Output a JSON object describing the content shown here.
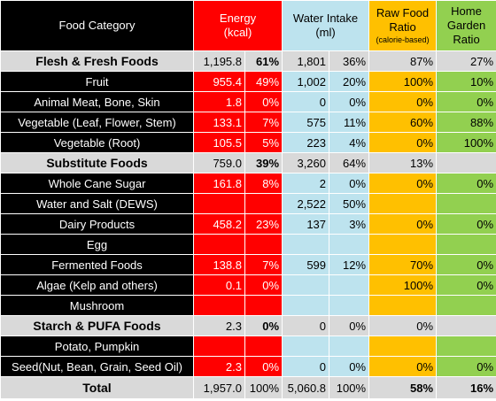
{
  "headers": {
    "category": "Food Category",
    "energy_line1": "Energy",
    "energy_line2": "(kcal)",
    "water_line1": "Water Intake",
    "water_line2": "(ml)",
    "raw_line1": "Raw Food",
    "raw_line2": "Ratio",
    "raw_line3": "(calorie-based)",
    "home_line1": "Home",
    "home_line2": "Garden",
    "home_line3": "Ratio"
  },
  "colors": {
    "energy": "#ff0000",
    "water": "#bde3ee",
    "raw": "#ffc000",
    "home": "#92d050",
    "section": "#d9d9d9",
    "item_label": "#000000"
  },
  "rows": [
    {
      "type": "section",
      "name": "Flesh & Fresh Foods",
      "energy": "1,195.8",
      "energy_pct": "61%",
      "water": "1,801",
      "water_pct": "36%",
      "raw": "87%",
      "home": "27%"
    },
    {
      "type": "item",
      "name": "Fruit",
      "energy": "955.4",
      "energy_pct": "49%",
      "water": "1,002",
      "water_pct": "20%",
      "raw": "100%",
      "home": "10%"
    },
    {
      "type": "item",
      "name": "Animal Meat, Bone, Skin",
      "energy": "1.8",
      "energy_pct": "0%",
      "water": "0",
      "water_pct": "0%",
      "raw": "0%",
      "home": "0%"
    },
    {
      "type": "item",
      "name": "Vegetable (Leaf, Flower, Stem)",
      "energy": "133.1",
      "energy_pct": "7%",
      "water": "575",
      "water_pct": "11%",
      "raw": "60%",
      "home": "88%"
    },
    {
      "type": "item",
      "name": "Vegetable (Root)",
      "energy": "105.5",
      "energy_pct": "5%",
      "water": "223",
      "water_pct": "4%",
      "raw": "0%",
      "home": "100%"
    },
    {
      "type": "section",
      "name": "Substitute Foods",
      "energy": "759.0",
      "energy_pct": "39%",
      "water": "3,260",
      "water_pct": "64%",
      "raw": "13%",
      "home": ""
    },
    {
      "type": "item",
      "name": "Whole Cane Sugar",
      "energy": "161.8",
      "energy_pct": "8%",
      "water": "2",
      "water_pct": "0%",
      "raw": "0%",
      "home": "0%"
    },
    {
      "type": "item",
      "name": "Water and Salt (DEWS)",
      "energy": "",
      "energy_pct": "",
      "water": "2,522",
      "water_pct": "50%",
      "raw": "",
      "home": ""
    },
    {
      "type": "item",
      "name": "Dairy Products",
      "energy": "458.2",
      "energy_pct": "23%",
      "water": "137",
      "water_pct": "3%",
      "raw": "0%",
      "home": "0%"
    },
    {
      "type": "item",
      "name": "Egg",
      "energy": "",
      "energy_pct": "",
      "water": "",
      "water_pct": "",
      "raw": "",
      "home": ""
    },
    {
      "type": "item",
      "name": "Fermented Foods",
      "energy": "138.8",
      "energy_pct": "7%",
      "water": "599",
      "water_pct": "12%",
      "raw": "70%",
      "home": "0%"
    },
    {
      "type": "item",
      "name": "Algae (Kelp and others)",
      "energy": "0.1",
      "energy_pct": "0%",
      "water": "",
      "water_pct": "",
      "raw": "100%",
      "home": "0%"
    },
    {
      "type": "item",
      "name": "Mushroom",
      "energy": "",
      "energy_pct": "",
      "water": "",
      "water_pct": "",
      "raw": "",
      "home": ""
    },
    {
      "type": "section",
      "name": "Starch & PUFA Foods",
      "energy": "2.3",
      "energy_pct": "0%",
      "water": "0",
      "water_pct": "0%",
      "raw": "0%",
      "home": ""
    },
    {
      "type": "item",
      "name": "Potato, Pumpkin",
      "energy": "",
      "energy_pct": "",
      "water": "",
      "water_pct": "",
      "raw": "",
      "home": ""
    },
    {
      "type": "item",
      "name": "Seed(Nut, Bean, Grain, Seed Oil)",
      "energy": "2.3",
      "energy_pct": "0%",
      "water": "0",
      "water_pct": "0%",
      "raw": "0%",
      "home": "0%"
    },
    {
      "type": "total",
      "name": "Total",
      "energy": "1,957.0",
      "energy_pct": "100%",
      "water": "5,060.8",
      "water_pct": "100%",
      "raw": "58%",
      "home": "16%"
    }
  ]
}
